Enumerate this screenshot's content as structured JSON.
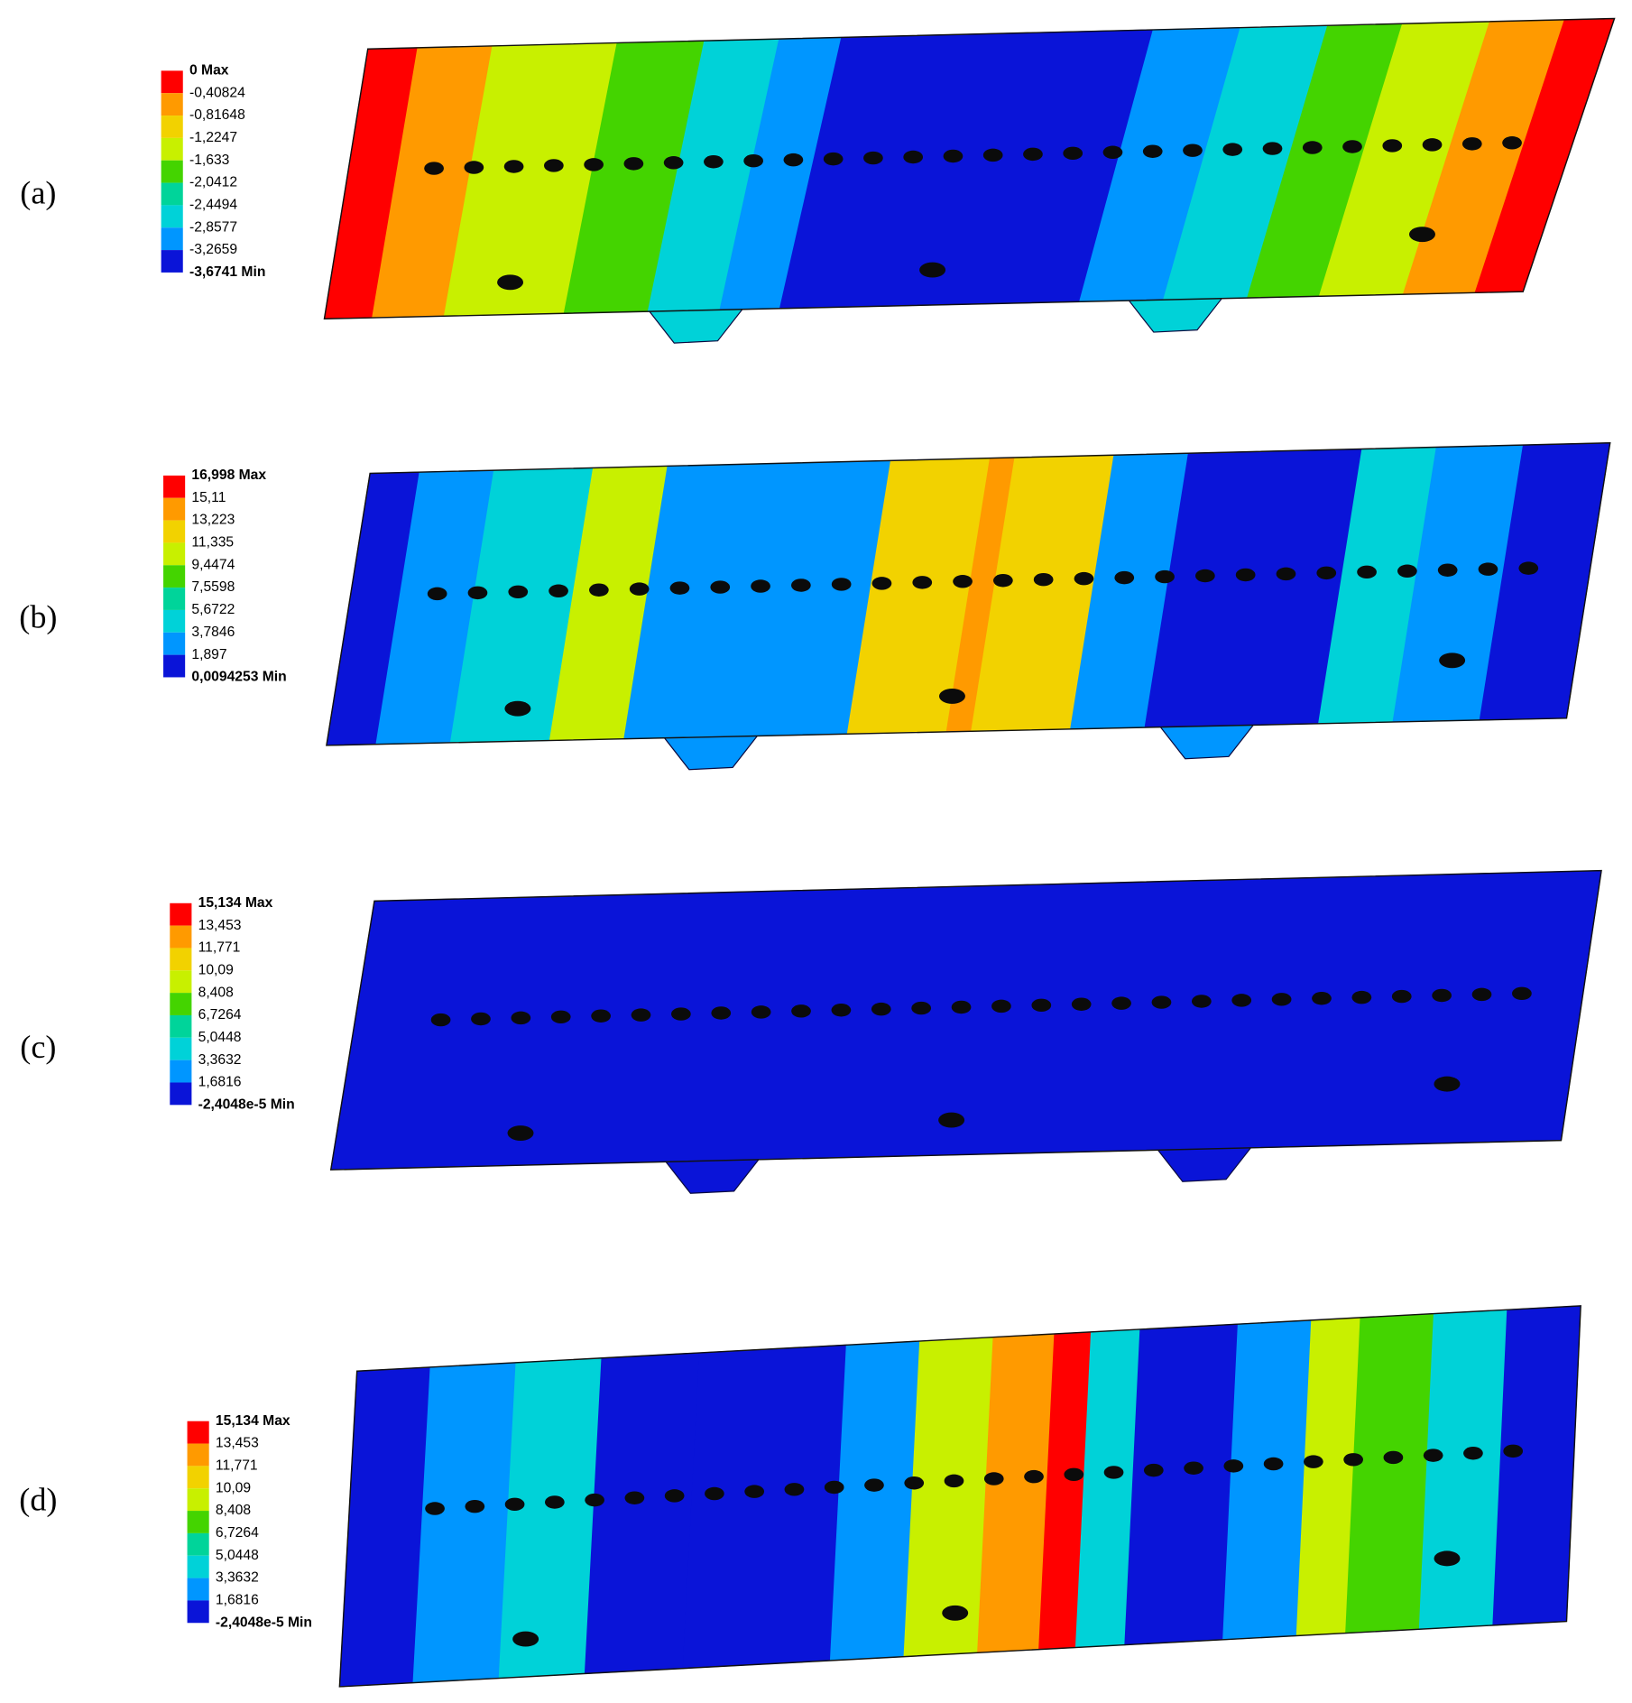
{
  "panels": [
    {
      "label": "(a)",
      "legend": [
        "0 Max",
        "-0,40824",
        "-0,81648",
        "-1,2247",
        "-1,633",
        "-2,0412",
        "-2,4494",
        "-2,8577",
        "-3,2659",
        "-3,6741 Min"
      ]
    },
    {
      "label": "(b)",
      "legend": [
        "16,998 Max",
        "15,11",
        "13,223",
        "11,335",
        "9,4474",
        "7,5598",
        "5,6722",
        "3,7846",
        "1,897",
        "0,0094253 Min"
      ]
    },
    {
      "label": "(c)",
      "legend": [
        "15,134 Max",
        "13,453",
        "11,771",
        "10,09",
        "8,408",
        "6,7264",
        "5,0448",
        "3,3632",
        "1,6816",
        "-2,4048e-5 Min"
      ]
    },
    {
      "label": "(d)",
      "legend": [
        "15,134 Max",
        "13,453",
        "11,771",
        "10,09",
        "8,408",
        "6,7264",
        "5,0448",
        "3,3632",
        "1,6816",
        "-2,4048e-5 Min"
      ]
    }
  ]
}
